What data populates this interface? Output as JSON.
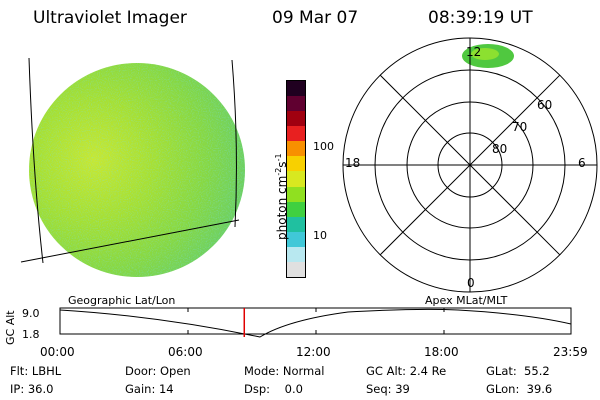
{
  "header": {
    "title": "Ultraviolet Imager",
    "date": "09 Mar 07",
    "time": "08:39:19 UT"
  },
  "colorbar": {
    "label": "photon cm",
    "label_sup1": "-2",
    "label_mid": "s",
    "label_sup2": "-1",
    "ticks": [
      "100",
      "10"
    ],
    "colors": [
      "#e0e0e0",
      "#b8e8f0",
      "#40c8d8",
      "#20c0a0",
      "#40d040",
      "#90e020",
      "#d8e820",
      "#f8d000",
      "#f89000",
      "#e82020",
      "#a00010",
      "#600030",
      "#200020"
    ]
  },
  "polar": {
    "mlt_labels": [
      "12",
      "18",
      "6",
      "0"
    ],
    "lat_labels": [
      "60",
      "70",
      "80"
    ]
  },
  "timeline": {
    "left_title": "Geographic Lat/Lon",
    "right_title": "Apex MLat/MLT",
    "axis_label": "GC Alt",
    "y_ticks": [
      "9.0",
      "1.8"
    ],
    "x_ticks": [
      "00:00",
      "06:00",
      "12:00",
      "18:00",
      "23:59"
    ],
    "current_time_fraction": 0.3606
  },
  "info": {
    "flt": "Flt: LBHL",
    "ip": "IP: 36.0",
    "door": "Door: Open",
    "gain": "Gain: 14",
    "mode": "Mode: Normal",
    "dsp": "Dsp:    0.0",
    "gcalt": "GC Alt: 2.4 Re",
    "seq": "Seq: 39",
    "glat": "GLat:  55.2",
    "glon": "GLon:  39.6"
  }
}
